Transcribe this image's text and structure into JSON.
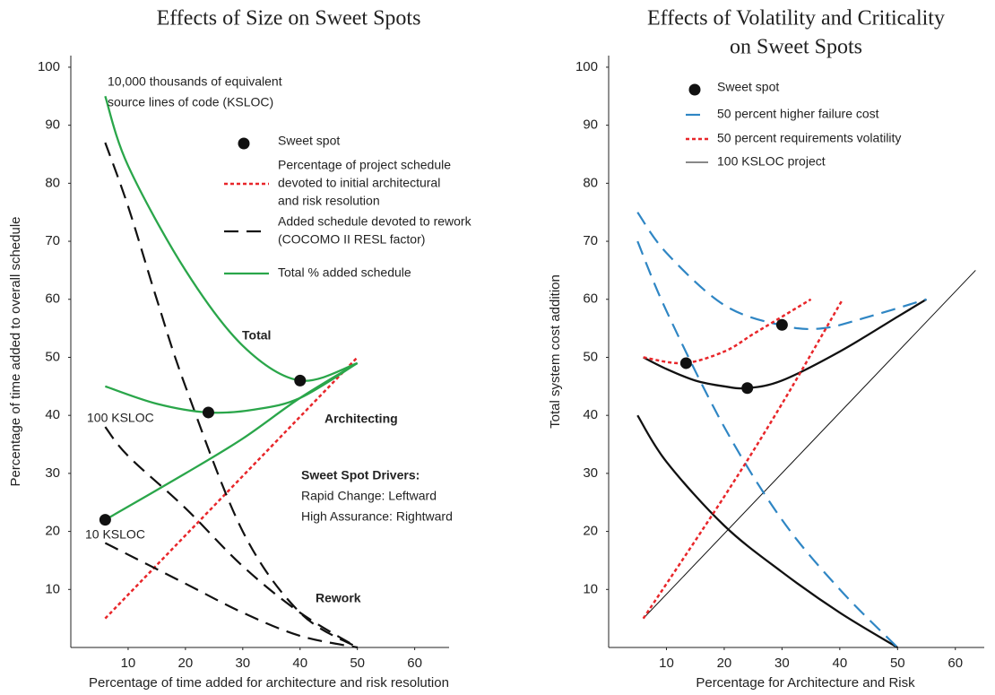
{
  "chart_data": [
    {
      "type": "line",
      "title": [
        "Effects of Size on Sweet Spots"
      ],
      "x_label": "Percentage of time added for architecture and risk resolution",
      "y_label": "Percentage of time added to overall schedule",
      "xlim": [
        0,
        66
      ],
      "ylim": [
        0,
        102
      ],
      "xticks": [
        10,
        20,
        30,
        40,
        50,
        60
      ],
      "yticks": [
        10,
        20,
        30,
        40,
        50,
        60,
        70,
        80,
        90,
        100
      ],
      "series": [
        {
          "color": "#e8262a",
          "style": "dotted",
          "x": [
            6,
            50
          ],
          "values": [
            5,
            50
          ]
        },
        {
          "color": "#111111",
          "style": "dashed",
          "x": [
            6,
            20,
            30,
            40,
            50
          ],
          "values": [
            18,
            11,
            6,
            2,
            0
          ]
        },
        {
          "color": "#111111",
          "style": "dashed",
          "x": [
            6,
            10,
            20,
            30,
            40,
            50
          ],
          "values": [
            38,
            33,
            24,
            14,
            6,
            0
          ]
        },
        {
          "color": "#111111",
          "style": "dashed",
          "x": [
            6,
            10,
            15,
            20,
            30,
            40,
            50
          ],
          "values": [
            87,
            76,
            60,
            45,
            20,
            6,
            0
          ]
        },
        {
          "color": "#2aa64a",
          "style": "solid",
          "x": [
            6,
            10,
            20,
            30,
            40,
            50
          ],
          "values": [
            95,
            83,
            65,
            52,
            46,
            49
          ]
        },
        {
          "color": "#2aa64a",
          "style": "solid",
          "x": [
            6,
            15,
            24,
            32,
            40,
            50
          ],
          "values": [
            45,
            42,
            40.5,
            41,
            43,
            49
          ]
        },
        {
          "color": "#2aa64a",
          "style": "solid",
          "x": [
            6,
            20,
            30,
            40,
            50
          ],
          "values": [
            22,
            30,
            36,
            43,
            49
          ]
        }
      ],
      "sweet_spots": {
        "x": [
          6,
          24,
          40
        ],
        "values": [
          22,
          40.5,
          46
        ]
      },
      "legend": [
        {
          "label": [
            "Sweet spot"
          ],
          "style": "dot",
          "color": "#111111"
        },
        {
          "label": [
            "Percentage of project schedule",
            "devoted to initial architectural",
            "and risk resolution"
          ],
          "style": "dotted",
          "color": "#e8262a"
        },
        {
          "label": [
            "Added schedule devoted to rework",
            "(COCOMO II RESL factor)"
          ],
          "style": "dashed",
          "color": "#111111"
        },
        {
          "label": [
            "Total % added schedule"
          ],
          "style": "solid",
          "color": "#2aa64a"
        }
      ],
      "annotations": [
        {
          "text": [
            "10,000 thousands of equivalent",
            "source lines of code (KSLOC)"
          ],
          "color": "#222222",
          "bold": false
        },
        {
          "text": [
            "100 KSLOC"
          ],
          "color": "#222222",
          "bold": false
        },
        {
          "text": [
            "10 KSLOC"
          ],
          "color": "#222222",
          "bold": false
        },
        {
          "text": [
            "Total"
          ],
          "color": "#2aa64a",
          "bold": true
        },
        {
          "text": [
            "Architecting"
          ],
          "color": "#e8262a",
          "bold": true
        },
        {
          "text": [
            "Sweet Spot Drivers:"
          ],
          "color": "#111111",
          "bold": true
        },
        {
          "text": [
            "Rapid Change: Leftward",
            "High Assurance: Rightward"
          ],
          "color": "#111111",
          "bold": false
        },
        {
          "text": [
            "Rework"
          ],
          "color": "#222222",
          "bold": true
        }
      ]
    },
    {
      "type": "line",
      "title": [
        "Effects of Volatility and Criticality",
        "on Sweet Spots"
      ],
      "x_label": "Percentage for Architecture and Risk",
      "y_label": "Total system cost addition",
      "xlim": [
        0,
        65
      ],
      "ylim": [
        0,
        102
      ],
      "xticks": [
        10,
        20,
        30,
        40,
        50,
        60
      ],
      "yticks": [
        10,
        20,
        30,
        40,
        50,
        60,
        70,
        80,
        90,
        100
      ],
      "series": [
        {
          "color": "#111111",
          "style": "thin",
          "x": [
            6,
            63.5
          ],
          "values": [
            5,
            65
          ]
        },
        {
          "color": "#111111",
          "style": "solid",
          "x": [
            6,
            10,
            15,
            20,
            24,
            30,
            40,
            50,
            55
          ],
          "values": [
            50,
            48,
            46,
            45,
            44.7,
            46,
            51,
            57,
            60
          ]
        },
        {
          "color": "#111111",
          "style": "solid",
          "x": [
            5,
            10,
            20,
            30,
            40,
            50
          ],
          "values": [
            40,
            32,
            21,
            13,
            6,
            0
          ]
        },
        {
          "color": "#2f86c4",
          "style": "dashed",
          "x": [
            5,
            10,
            20,
            30,
            37,
            45,
            55
          ],
          "values": [
            75,
            68,
            59,
            55.5,
            55,
            57,
            60
          ]
        },
        {
          "color": "#2f86c4",
          "style": "dashed",
          "x": [
            5,
            10,
            20,
            30,
            40,
            50
          ],
          "values": [
            70,
            58,
            38,
            22,
            10,
            0
          ]
        },
        {
          "color": "#e8262a",
          "style": "dotted",
          "x": [
            6,
            13,
            20,
            25,
            30,
            35
          ],
          "values": [
            50,
            49,
            51,
            54,
            57,
            60
          ]
        },
        {
          "color": "#e8262a",
          "style": "dotted",
          "x": [
            6,
            20,
            30,
            40.5
          ],
          "values": [
            5,
            26,
            42,
            60
          ]
        }
      ],
      "sweet_spots": {
        "x": [
          13.4,
          24,
          30
        ],
        "values": [
          49,
          44.7,
          55.6
        ]
      },
      "legend": [
        {
          "label": [
            "Sweet spot"
          ],
          "style": "dot",
          "color": "#111111"
        },
        {
          "label": [
            "50 percent higher failure cost"
          ],
          "style": "dashed",
          "color": "#2f86c4"
        },
        {
          "label": [
            "50 percent requirements volatility"
          ],
          "style": "dotted",
          "color": "#e8262a"
        },
        {
          "label": [
            "100 KSLOC project"
          ],
          "style": "thin",
          "color": "#111111"
        }
      ],
      "annotations": []
    }
  ]
}
